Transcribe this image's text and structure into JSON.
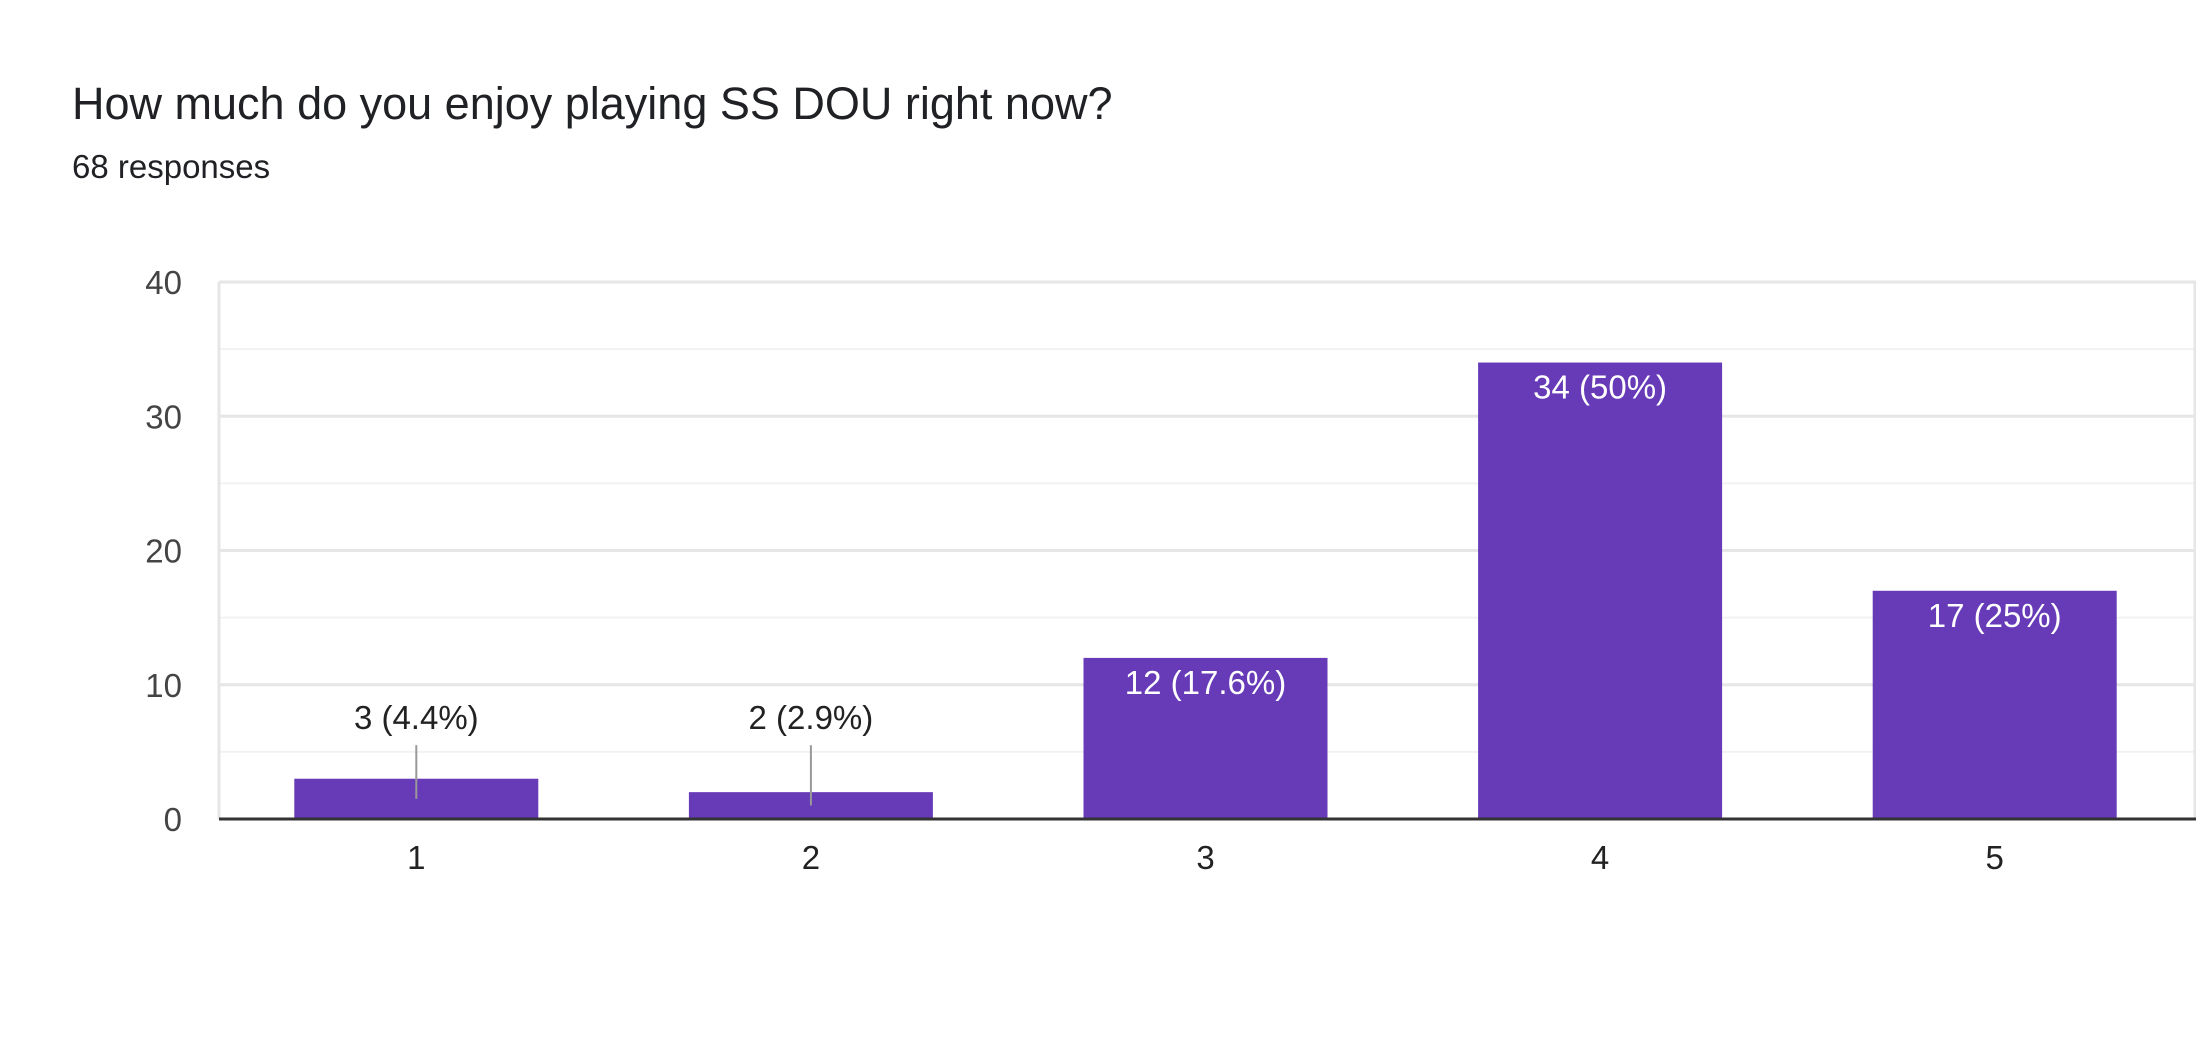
{
  "header": {
    "question": "How much do you enjoy playing SS DOU right now?",
    "responses": "68 responses"
  },
  "colors": {
    "bar": "#673ab7",
    "grid_major": "#e6e6e6",
    "grid_minor": "#f2f2f2",
    "axis": "#333333",
    "label_outside": "#222222",
    "label_inside": "#ffffff",
    "leader": "#999999"
  },
  "chart_data": {
    "type": "bar",
    "title": "How much do you enjoy playing SS DOU right now?",
    "subtitle": "68 responses",
    "categories": [
      "1",
      "2",
      "3",
      "4",
      "5"
    ],
    "values": [
      3,
      2,
      12,
      34,
      17
    ],
    "data_labels": [
      "3 (4.4%)",
      "2 (2.9%)",
      "12 (17.6%)",
      "34 (50%)",
      "17 (25%)"
    ],
    "ylim": [
      0,
      40
    ],
    "yticks": [
      0,
      10,
      20,
      30,
      40
    ],
    "xlabel": "",
    "ylabel": "",
    "grid": true,
    "legend": "none"
  }
}
